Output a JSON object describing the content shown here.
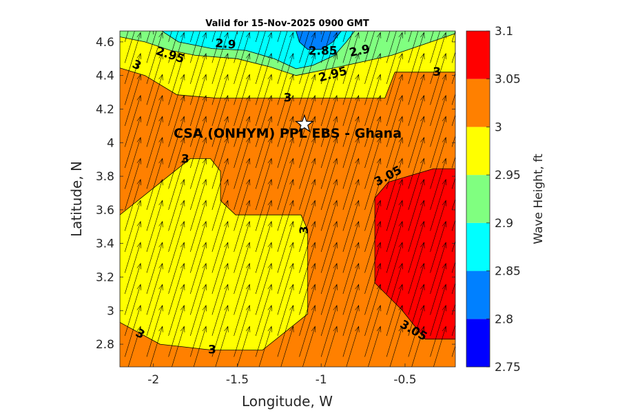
{
  "chart_data": {
    "type": "contour",
    "title": "Valid for 15-Nov-2025 0900 GMT",
    "xlabel": "Longitude, W",
    "ylabel": "Latitude, N",
    "xlim": [
      -2.2,
      -0.2
    ],
    "ylim": [
      2.665,
      4.665
    ],
    "xticks": [
      -2,
      -1.5,
      -1,
      -0.5
    ],
    "xtick_labels": [
      "-2",
      "-1.5",
      "-1",
      "-0.5"
    ],
    "yticks": [
      2.8,
      3,
      3.2,
      3.4,
      3.6,
      3.8,
      4,
      4.2,
      4.4,
      4.6
    ],
    "ytick_labels": [
      "2.8",
      "3",
      "3.2",
      "3.4",
      "3.6",
      "3.8",
      "4",
      "4.2",
      "4.4",
      "4.6"
    ],
    "colorbar": {
      "label": "Wave Height, ft",
      "levels": [
        2.75,
        2.8,
        2.85,
        2.9,
        2.95,
        3,
        3.05,
        3.1
      ],
      "tick_labels": [
        "2.75",
        "2.8",
        "2.85",
        "2.9",
        "2.95",
        "3",
        "3.05",
        "3.1"
      ],
      "colors": [
        "#0000ff",
        "#0080ff",
        "#00ffff",
        "#80ff80",
        "#ffff00",
        "#ff8000",
        "#ff0000"
      ]
    },
    "background_band": {
      "range": [
        3.0,
        3.05
      ],
      "color": "#ff8000"
    },
    "regions": [
      {
        "name": "yellow-2.95-3.00-north",
        "color": "#ffff00",
        "points": [
          [
            -2.2,
            4.665
          ],
          [
            -1.95,
            4.665
          ],
          [
            -1.15,
            4.665
          ],
          [
            -0.8,
            4.665
          ],
          [
            -0.2,
            4.665
          ],
          [
            -0.2,
            4.42
          ],
          [
            -0.31,
            4.42
          ],
          [
            -0.56,
            4.42
          ],
          [
            -0.62,
            4.265
          ],
          [
            -1.62,
            4.265
          ],
          [
            -1.86,
            4.285
          ],
          [
            -2.05,
            4.4
          ],
          [
            -2.2,
            4.445
          ]
        ]
      },
      {
        "name": "green-2.90-2.95",
        "color": "#80ff80",
        "points": [
          [
            -2.2,
            4.665
          ],
          [
            -0.2,
            4.665
          ],
          [
            -0.2,
            4.65
          ],
          [
            -0.58,
            4.52
          ],
          [
            -0.9,
            4.45
          ],
          [
            -1.15,
            4.4
          ],
          [
            -1.3,
            4.45
          ],
          [
            -1.5,
            4.5
          ],
          [
            -1.75,
            4.52
          ],
          [
            -1.9,
            4.55
          ],
          [
            -2.05,
            4.6
          ],
          [
            -2.2,
            4.63
          ]
        ]
      },
      {
        "name": "cyan-2.85-2.90",
        "color": "#00ffff",
        "points": [
          [
            -1.95,
            4.665
          ],
          [
            -0.8,
            4.665
          ],
          [
            -0.85,
            4.6
          ],
          [
            -0.92,
            4.52
          ],
          [
            -1.05,
            4.46
          ],
          [
            -1.15,
            4.44
          ],
          [
            -1.28,
            4.5
          ],
          [
            -1.45,
            4.55
          ],
          [
            -1.65,
            4.56
          ],
          [
            -1.85,
            4.6
          ]
        ]
      },
      {
        "name": "blue-2.80-2.85",
        "color": "#0080ff",
        "points": [
          [
            -1.15,
            4.665
          ],
          [
            -0.88,
            4.665
          ],
          [
            -0.93,
            4.6
          ],
          [
            -1.0,
            4.555
          ],
          [
            -1.08,
            4.555
          ],
          [
            -1.13,
            4.6
          ]
        ]
      },
      {
        "name": "yellow-2.95-3.00-southwest",
        "color": "#ffff00",
        "points": [
          [
            -2.2,
            3.57
          ],
          [
            -1.78,
            3.905
          ],
          [
            -1.66,
            3.905
          ],
          [
            -1.6,
            3.83
          ],
          [
            -1.6,
            3.655
          ],
          [
            -1.51,
            3.57
          ],
          [
            -1.12,
            3.57
          ],
          [
            -1.08,
            3.48
          ],
          [
            -1.08,
            2.98
          ],
          [
            -1.35,
            2.765
          ],
          [
            -1.65,
            2.765
          ],
          [
            -1.96,
            2.8
          ],
          [
            -2.2,
            2.93
          ]
        ]
      },
      {
        "name": "red-3.05-3.10-east",
        "color": "#ff0000",
        "points": [
          [
            -0.2,
            3.845
          ],
          [
            -0.33,
            3.845
          ],
          [
            -0.6,
            3.765
          ],
          [
            -0.68,
            3.67
          ],
          [
            -0.68,
            3.165
          ],
          [
            -0.52,
            3.005
          ],
          [
            -0.38,
            2.83
          ],
          [
            -0.2,
            2.83
          ]
        ]
      }
    ],
    "contour_labels": [
      {
        "text": "3",
        "lon": -2.1,
        "lat": 4.46,
        "angle": 25
      },
      {
        "text": "2.95",
        "lon": -1.9,
        "lat": 4.52,
        "angle": 18
      },
      {
        "text": "2.9",
        "lon": -1.57,
        "lat": 4.585,
        "angle": 5
      },
      {
        "text": "2.85",
        "lon": -0.99,
        "lat": 4.545,
        "angle": 0
      },
      {
        "text": "2.9",
        "lon": -0.77,
        "lat": 4.545,
        "angle": -12
      },
      {
        "text": "2.95",
        "lon": -0.93,
        "lat": 4.405,
        "angle": -15
      },
      {
        "text": "3",
        "lon": -0.31,
        "lat": 4.42,
        "angle": 0
      },
      {
        "text": "3",
        "lon": -1.2,
        "lat": 4.265,
        "angle": 0
      },
      {
        "text": "3",
        "lon": -1.81,
        "lat": 3.9,
        "angle": 0
      },
      {
        "text": "3.05",
        "lon": -0.6,
        "lat": 3.8,
        "angle": -28
      },
      {
        "text": "3",
        "lon": -1.1,
        "lat": 3.48,
        "angle": -90
      },
      {
        "text": "3",
        "lon": -2.08,
        "lat": 2.86,
        "angle": 30
      },
      {
        "text": "3",
        "lon": -1.65,
        "lat": 2.765,
        "angle": 0
      },
      {
        "text": "3.05",
        "lon": -0.45,
        "lat": 2.88,
        "angle": 30
      }
    ],
    "site": {
      "label": "CSA (ONHYM) PPL EBS  - Ghana",
      "lon": -1.1,
      "lat": 4.11,
      "label_lon": -1.2,
      "label_lat": 4.055
    },
    "vectors": {
      "direction_deg_from_north": 17,
      "grid_lon_start": -2.17,
      "grid_lon_step": 0.13,
      "grid_lat_start": 2.6,
      "grid_lat_step": 0.125,
      "length_lat": 0.32
    }
  }
}
